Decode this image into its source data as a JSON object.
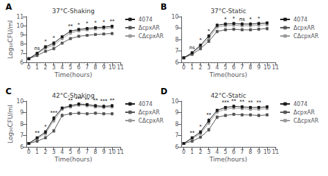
{
  "chart_data": [
    {
      "type": "line",
      "panel_label": "A",
      "title": "37°C-Shaking",
      "xlabel": "Time(hours)",
      "ylabel": "Log₁₀CFU/ml",
      "x": [
        0,
        1,
        2,
        3,
        4,
        5,
        6,
        7,
        8,
        9,
        10
      ],
      "xlim": [
        -0.3,
        11
      ],
      "xticks": [
        0,
        1,
        2,
        3,
        4,
        5,
        6,
        7,
        8,
        9,
        10,
        11
      ],
      "ylim": [
        6,
        11
      ],
      "yticks": [
        6,
        7,
        8,
        9,
        10,
        11
      ],
      "grid": false,
      "legend": "right",
      "marker": "square",
      "series": [
        {
          "name": "4074",
          "color": "#1a1a1a",
          "values": [
            6.4,
            7.0,
            7.7,
            8.1,
            8.8,
            9.4,
            9.6,
            9.7,
            9.8,
            9.85,
            9.95
          ],
          "errors": [
            0.03,
            0.07,
            0.12,
            0.15,
            0.12,
            0.1,
            0.1,
            0.1,
            0.1,
            0.1,
            0.1
          ]
        },
        {
          "name": "ΔcpxAR",
          "color": "#555555",
          "values": [
            6.4,
            6.75,
            7.2,
            7.5,
            8.1,
            8.6,
            8.85,
            8.95,
            9.05,
            9.1,
            9.15
          ],
          "errors": [
            0.03,
            0.07,
            0.1,
            0.12,
            0.1,
            0.1,
            0.1,
            0.1,
            0.1,
            0.1,
            0.1
          ]
        },
        {
          "name": "CΔcpxAR",
          "color": "#999999",
          "values": [
            6.4,
            6.9,
            7.55,
            7.9,
            8.6,
            9.2,
            9.45,
            9.55,
            9.65,
            9.7,
            9.8
          ],
          "errors": [
            0.03,
            0.07,
            0.12,
            0.15,
            0.12,
            0.1,
            0.1,
            0.1,
            0.1,
            0.1,
            0.1
          ]
        }
      ],
      "annotations": [
        {
          "x": 1,
          "text": "ns"
        },
        {
          "x": 2,
          "text": "*"
        },
        {
          "x": 3,
          "text": "*"
        },
        {
          "x": 5,
          "text": "**"
        },
        {
          "x": 6,
          "text": "*"
        },
        {
          "x": 7,
          "text": "*"
        },
        {
          "x": 8,
          "text": "*"
        },
        {
          "x": 9,
          "text": "*"
        },
        {
          "x": 10,
          "text": "**"
        }
      ]
    },
    {
      "type": "line",
      "panel_label": "B",
      "title": "37°C-Static",
      "xlabel": "Time(hours)",
      "x": [
        0,
        1,
        2,
        3,
        4,
        5,
        6,
        7,
        8,
        9,
        10
      ],
      "xlim": [
        -0.3,
        11
      ],
      "xticks": [
        0,
        1,
        2,
        3,
        4,
        5,
        6,
        7,
        8,
        9,
        10,
        11
      ],
      "ylim": [
        6,
        10
      ],
      "yticks": [
        6,
        7,
        8,
        9,
        10
      ],
      "grid": false,
      "legend": "right",
      "marker": "square",
      "series": [
        {
          "name": "4074",
          "color": "#1a1a1a",
          "values": [
            6.4,
            6.85,
            7.5,
            8.3,
            9.25,
            9.35,
            9.4,
            9.35,
            9.35,
            9.4,
            9.45
          ],
          "errors": [
            0.03,
            0.07,
            0.1,
            0.12,
            0.1,
            0.1,
            0.1,
            0.1,
            0.1,
            0.1,
            0.1
          ]
        },
        {
          "name": "ΔcpxAR",
          "color": "#555555",
          "values": [
            6.4,
            6.7,
            7.2,
            7.85,
            8.7,
            8.85,
            8.9,
            8.85,
            8.85,
            8.9,
            8.95
          ],
          "errors": [
            0.03,
            0.07,
            0.1,
            0.12,
            0.1,
            0.1,
            0.1,
            0.1,
            0.1,
            0.1,
            0.1
          ]
        },
        {
          "name": "CΔcpxAR",
          "color": "#999999",
          "values": [
            6.4,
            6.8,
            7.4,
            8.1,
            9.1,
            9.2,
            9.25,
            9.2,
            9.2,
            9.25,
            9.3
          ],
          "errors": [
            0.03,
            0.07,
            0.1,
            0.12,
            0.1,
            0.1,
            0.1,
            0.1,
            0.1,
            0.1,
            0.1
          ]
        }
      ],
      "annotations": [
        {
          "x": 1,
          "text": "ns"
        },
        {
          "x": 2,
          "text": "*"
        },
        {
          "x": 3,
          "text": "*"
        },
        {
          "x": 5,
          "text": "*"
        },
        {
          "x": 6,
          "text": "*"
        },
        {
          "x": 7,
          "text": "ns"
        },
        {
          "x": 8,
          "text": "*"
        },
        {
          "x": 9,
          "text": "*"
        }
      ]
    },
    {
      "type": "line",
      "panel_label": "C",
      "title": "42°C-Shaking",
      "xlabel": "Time(hours)",
      "ylabel": "Log₁₀CFU/ml",
      "x": [
        0,
        1,
        2,
        3,
        4,
        5,
        6,
        7,
        8,
        9,
        10
      ],
      "xlim": [
        -0.3,
        11
      ],
      "xticks": [
        0,
        1,
        2,
        3,
        4,
        5,
        6,
        7,
        8,
        9,
        10,
        11
      ],
      "ylim": [
        6,
        10
      ],
      "yticks": [
        6,
        7,
        8,
        9,
        10
      ],
      "grid": false,
      "legend": "right",
      "marker": "square",
      "series": [
        {
          "name": "4074",
          "color": "#1a1a1a",
          "values": [
            6.3,
            6.8,
            7.3,
            8.5,
            9.4,
            9.6,
            9.75,
            9.7,
            9.6,
            9.55,
            9.6
          ],
          "errors": [
            0.03,
            0.08,
            0.12,
            0.15,
            0.1,
            0.1,
            0.1,
            0.1,
            0.1,
            0.1,
            0.1
          ]
        },
        {
          "name": "ΔcpxAR",
          "color": "#555555",
          "values": [
            6.3,
            6.5,
            6.8,
            7.4,
            8.75,
            8.9,
            8.95,
            8.9,
            8.95,
            8.9,
            8.9
          ],
          "errors": [
            0.03,
            0.08,
            0.1,
            0.12,
            0.12,
            0.1,
            0.1,
            0.1,
            0.1,
            0.1,
            0.1
          ]
        },
        {
          "name": "CΔcpxAR",
          "color": "#999999",
          "values": [
            6.3,
            6.7,
            7.15,
            8.3,
            9.3,
            9.5,
            9.65,
            9.6,
            9.5,
            9.45,
            9.5
          ],
          "errors": [
            0.03,
            0.08,
            0.12,
            0.15,
            0.1,
            0.1,
            0.1,
            0.1,
            0.1,
            0.1,
            0.1
          ]
        }
      ],
      "annotations": [
        {
          "x": 1,
          "text": "**"
        },
        {
          "x": 2,
          "text": "*"
        },
        {
          "x": 3,
          "text": "***"
        },
        {
          "x": 5,
          "text": "**"
        },
        {
          "x": 6,
          "text": "***"
        },
        {
          "x": 7,
          "text": "**"
        },
        {
          "x": 8,
          "text": "**"
        },
        {
          "x": 9,
          "text": "***"
        },
        {
          "x": 10,
          "text": "**"
        }
      ]
    },
    {
      "type": "line",
      "panel_label": "D",
      "title": "42°C-Static",
      "xlabel": "Time(hours)",
      "x": [
        0,
        1,
        2,
        3,
        4,
        5,
        6,
        7,
        8,
        9,
        10
      ],
      "xlim": [
        -0.3,
        11
      ],
      "xticks": [
        0,
        1,
        2,
        3,
        4,
        5,
        6,
        7,
        8,
        9,
        10,
        11
      ],
      "ylim": [
        6,
        10
      ],
      "yticks": [
        6,
        7,
        8,
        9,
        10
      ],
      "grid": false,
      "legend": "right",
      "marker": "square",
      "series": [
        {
          "name": "4074",
          "color": "#1a1a1a",
          "values": [
            6.3,
            6.8,
            7.3,
            8.3,
            9.2,
            9.45,
            9.55,
            9.5,
            9.45,
            9.45,
            9.5
          ],
          "errors": [
            0.03,
            0.07,
            0.1,
            0.15,
            0.1,
            0.1,
            0.1,
            0.1,
            0.1,
            0.1,
            0.1
          ]
        },
        {
          "name": "ΔcpxAR",
          "color": "#555555",
          "values": [
            6.3,
            6.5,
            6.85,
            7.5,
            8.6,
            8.75,
            8.85,
            8.8,
            8.8,
            8.75,
            8.8
          ],
          "errors": [
            0.03,
            0.07,
            0.1,
            0.12,
            0.12,
            0.1,
            0.1,
            0.1,
            0.1,
            0.1,
            0.1
          ]
        },
        {
          "name": "CΔcpxAR",
          "color": "#999999",
          "values": [
            6.3,
            6.7,
            7.15,
            8.1,
            9.05,
            9.3,
            9.4,
            9.35,
            9.3,
            9.3,
            9.35
          ],
          "errors": [
            0.03,
            0.07,
            0.1,
            0.15,
            0.1,
            0.1,
            0.1,
            0.1,
            0.1,
            0.1,
            0.1
          ]
        }
      ],
      "annotations": [
        {
          "x": 1,
          "text": "**"
        },
        {
          "x": 2,
          "text": "*"
        },
        {
          "x": 3,
          "text": "**"
        },
        {
          "x": 5,
          "text": "***"
        },
        {
          "x": 6,
          "text": "**"
        },
        {
          "x": 7,
          "text": "**"
        },
        {
          "x": 8,
          "text": "**"
        },
        {
          "x": 9,
          "text": "**"
        }
      ]
    }
  ]
}
